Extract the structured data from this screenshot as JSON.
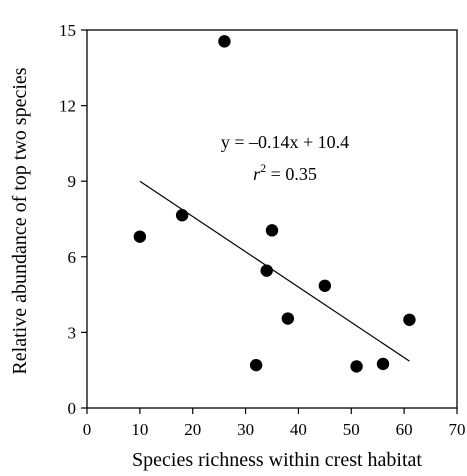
{
  "chart_data": {
    "type": "scatter",
    "title": "",
    "xlabel": "Species richness within crest habitat",
    "ylabel": "Relative abundance of top two species",
    "xlim": [
      0,
      70
    ],
    "ylim": [
      0,
      15
    ],
    "x_ticks": [
      0,
      10,
      20,
      30,
      40,
      50,
      60,
      70
    ],
    "y_ticks": [
      0,
      3,
      6,
      9,
      12,
      15
    ],
    "grid": false,
    "legend": "none",
    "series": [
      {
        "x": [
          10,
          18,
          26,
          32,
          34,
          35,
          38,
          45,
          51,
          56,
          61
        ],
        "y": [
          6.8,
          7.65,
          14.55,
          1.7,
          5.45,
          7.05,
          3.55,
          4.85,
          1.65,
          1.75,
          3.5
        ]
      }
    ],
    "trendline": {
      "slope": -0.14,
      "intercept": 10.4,
      "x_range": [
        10,
        61
      ]
    },
    "annotations": {
      "equation": "y = –0.14x + 10.4",
      "r2_label": "r",
      "r2_exponent": "2",
      "r2_value": " = 0.35"
    },
    "colors": {
      "marker": "#000000",
      "line": "#000000",
      "axis": "#000000"
    }
  }
}
